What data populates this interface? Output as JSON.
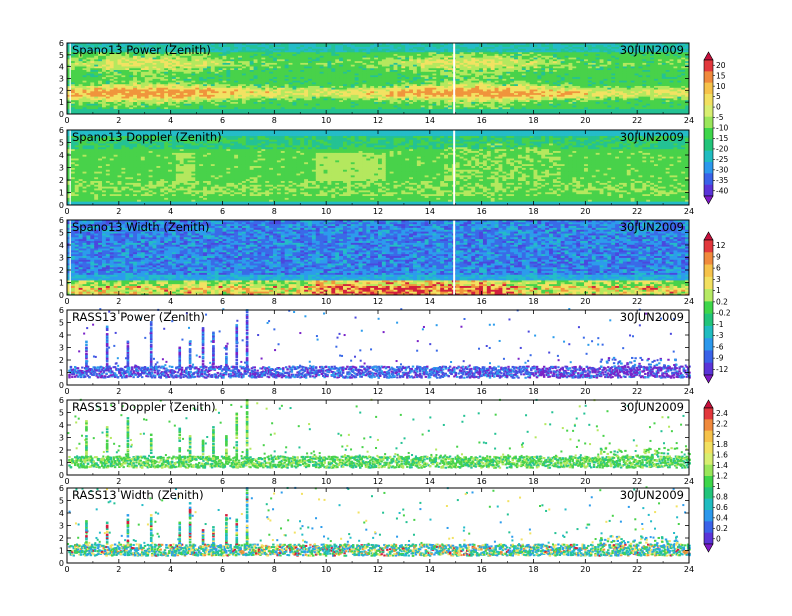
{
  "chart_data": [
    {
      "type": "heatmap",
      "title": "Spano13 Power (Zenith)",
      "date": "30JUN2009",
      "xlim": [
        0,
        24
      ],
      "ylim": [
        0,
        6
      ],
      "x_ticks": [
        "0",
        "2",
        "4",
        "6",
        "8",
        "10",
        "12",
        "14",
        "16",
        "18",
        "20",
        "22",
        "24"
      ],
      "y_ticks": [
        "0",
        "1",
        "2",
        "3",
        "4",
        "5",
        "6"
      ],
      "field": "power",
      "gap_hour": 14.9
    },
    {
      "type": "heatmap",
      "title": "Spano13 Doppler (Zenith)",
      "date": "30JUN2009",
      "xlim": [
        0,
        24
      ],
      "ylim": [
        0,
        6
      ],
      "x_ticks": [
        "0",
        "2",
        "4",
        "6",
        "8",
        "10",
        "12",
        "14",
        "16",
        "18",
        "20",
        "22",
        "24"
      ],
      "y_ticks": [
        "0",
        "1",
        "2",
        "3",
        "4",
        "5",
        "6"
      ],
      "field": "doppler",
      "gap_hour": 14.9
    },
    {
      "type": "heatmap",
      "title": "Spano13 Width (Zenith)",
      "date": "30JUN2009",
      "xlim": [
        0,
        24
      ],
      "ylim": [
        0,
        6
      ],
      "x_ticks": [
        "0",
        "2",
        "4",
        "6",
        "8",
        "10",
        "12",
        "14",
        "16",
        "18",
        "20",
        "22",
        "24"
      ],
      "y_ticks": [
        "0",
        "1",
        "2",
        "3",
        "4",
        "5",
        "6"
      ],
      "field": "width",
      "gap_hour": 14.9
    },
    {
      "type": "heatmap",
      "title": "RASS13 Power (Zenith)",
      "date": "30JUN2009",
      "xlim": [
        0,
        24
      ],
      "ylim": [
        0,
        6
      ],
      "x_ticks": [
        "0",
        "2",
        "4",
        "6",
        "8",
        "10",
        "12",
        "14",
        "16",
        "18",
        "20",
        "22",
        "24"
      ],
      "y_ticks": [
        "0",
        "1",
        "2",
        "3",
        "4",
        "5",
        "6"
      ],
      "field": "rass_power",
      "spike_hours": [
        0.7,
        1.5,
        2.3,
        3.2,
        4.3,
        4.7,
        5.2,
        5.6,
        6.1,
        6.5,
        6.9
      ]
    },
    {
      "type": "heatmap",
      "title": "RASS13 Doppler (Zenith)",
      "date": "30JUN2009",
      "xlim": [
        0,
        24
      ],
      "ylim": [
        0,
        6
      ],
      "x_ticks": [
        "0",
        "2",
        "4",
        "6",
        "8",
        "10",
        "12",
        "14",
        "16",
        "18",
        "20",
        "22",
        "24"
      ],
      "y_ticks": [
        "0",
        "1",
        "2",
        "3",
        "4",
        "5",
        "6"
      ],
      "field": "rass_doppler",
      "spike_hours": [
        0.7,
        1.5,
        2.3,
        3.2,
        4.3,
        4.7,
        5.2,
        5.6,
        6.1,
        6.5,
        6.9
      ]
    },
    {
      "type": "heatmap",
      "title": "RASS13 Width (Zenith)",
      "date": "30JUN2009",
      "xlim": [
        0,
        24
      ],
      "ylim": [
        0,
        6
      ],
      "x_ticks": [
        "0",
        "2",
        "4",
        "6",
        "8",
        "10",
        "12",
        "14",
        "16",
        "18",
        "20",
        "22",
        "24"
      ],
      "y_ticks": [
        "0",
        "1",
        "2",
        "3",
        "4",
        "5",
        "6"
      ],
      "field": "rass_width",
      "spike_hours": [
        0.7,
        1.5,
        2.3,
        3.2,
        4.3,
        4.7,
        5.2,
        5.6,
        6.1,
        6.5,
        6.9
      ]
    }
  ],
  "colorbars": [
    {
      "labels": [
        "20",
        "15",
        "10",
        "5",
        "0",
        "-5",
        "-10",
        "-15",
        "-20",
        "-25",
        "-30",
        "-35",
        "-40"
      ],
      "colors": [
        "#c8103c",
        "#e2383c",
        "#f08a3c",
        "#f6c24a",
        "#f2e060",
        "#d8ee70",
        "#9ae65a",
        "#3ed64a",
        "#22c47a",
        "#20bcc0",
        "#2c98ec",
        "#3a62e8",
        "#5a34d8",
        "#7e18c6"
      ]
    },
    {
      "labels": [
        "12",
        "9",
        "6",
        "3",
        "1",
        "0.2",
        "-0.2",
        "-1",
        "-3",
        "-6",
        "-9",
        "-12"
      ],
      "colors": [
        "#c8103c",
        "#e2383c",
        "#f08a3c",
        "#f6c24a",
        "#f2e060",
        "#b6ea64",
        "#3ed64a",
        "#22c47a",
        "#20bcc0",
        "#2c98ec",
        "#3a62e8",
        "#5a34d8",
        "#7e18c6"
      ]
    },
    {
      "labels": [
        "2.4",
        "2.2",
        "2",
        "1.8",
        "1.6",
        "1.4",
        "1.2",
        "1",
        "0.8",
        "0.6",
        "0.4",
        "0.2",
        "0"
      ],
      "colors": [
        "#c8103c",
        "#e2383c",
        "#f08a3c",
        "#f6c24a",
        "#f2e060",
        "#d8ee70",
        "#9ae65a",
        "#3ed64a",
        "#22c47a",
        "#20bcc0",
        "#2c98ec",
        "#3a62e8",
        "#5a34d8",
        "#7e18c6"
      ]
    }
  ]
}
